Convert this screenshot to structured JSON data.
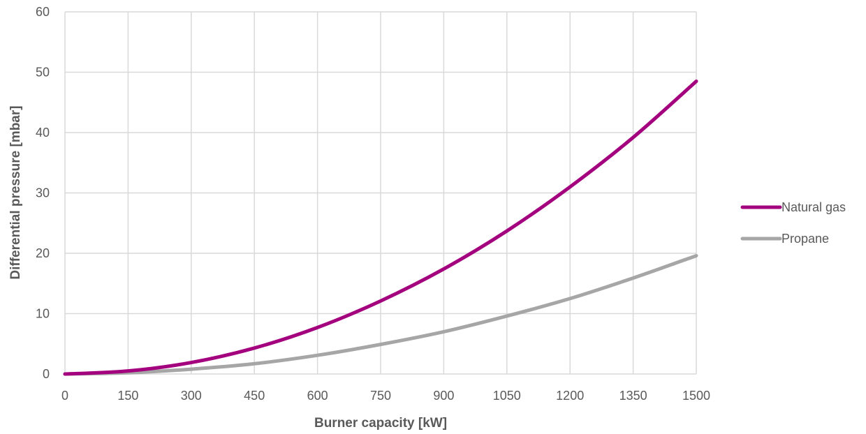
{
  "chart_data": {
    "type": "line",
    "title": "",
    "xlabel": "Burner capacity [kW]",
    "ylabel": "Differential pressure [mbar]",
    "x": [
      0,
      150,
      300,
      450,
      600,
      750,
      900,
      1050,
      1200,
      1350,
      1500
    ],
    "xlim": [
      0,
      1500
    ],
    "ylim": [
      0,
      60
    ],
    "x_ticks": [
      "0",
      "150",
      "300",
      "450",
      "600",
      "750",
      "900",
      "1050",
      "1200",
      "1350",
      "1500"
    ],
    "y_ticks": [
      "0",
      "10",
      "20",
      "30",
      "40",
      "50",
      "60"
    ],
    "grid": true,
    "legend_position": "right",
    "series": [
      {
        "name": "Natural gas",
        "color": "#a3017e",
        "values": [
          0,
          0.5,
          1.9,
          4.3,
          7.7,
          12.1,
          17.4,
          23.7,
          31.0,
          39.2,
          48.5
        ]
      },
      {
        "name": "Propane",
        "color": "#a6a6a6",
        "values": [
          0,
          0.2,
          0.8,
          1.7,
          3.1,
          4.9,
          7.0,
          9.6,
          12.5,
          15.9,
          19.6
        ]
      }
    ]
  }
}
